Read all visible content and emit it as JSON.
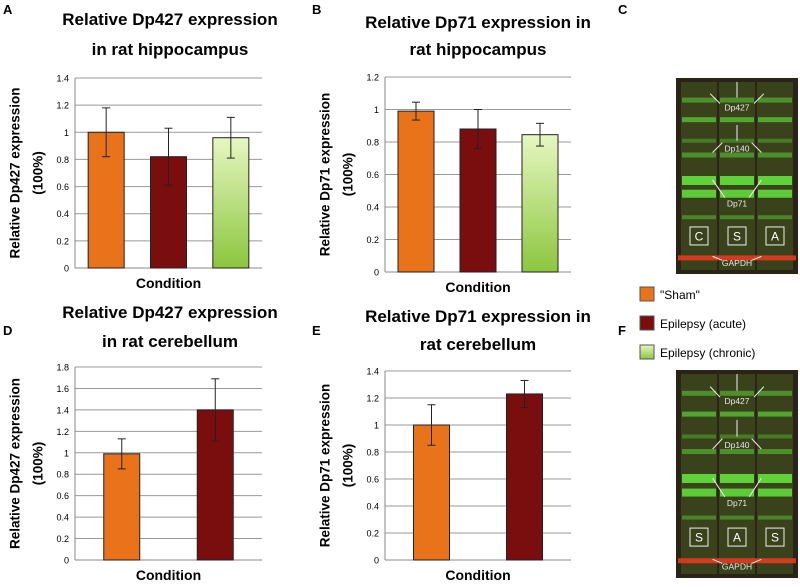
{
  "colors": {
    "sham": "#e8731a",
    "acute": "#7a0d0d",
    "chronic_light": "#e6f7c0",
    "chronic_dark": "#8cc63f",
    "grid": "#999999",
    "blot_bg": "#2a2318",
    "blot_band": "#5fd23a",
    "blot_red": "#e63a1e"
  },
  "legend": {
    "sham": "\"Sham\"",
    "acute": "Epilepsy (acute)",
    "chronic": "Epilepsy (chronic)"
  },
  "blots": [
    {
      "panel": "C",
      "labels": [
        "Dp427",
        "Dp140",
        "Dp71",
        "GAPDH"
      ],
      "lanes": [
        "C",
        "S",
        "A"
      ]
    },
    {
      "panel": "F",
      "labels": [
        "Dp427",
        "Dp140",
        "Dp71",
        "GAPDH"
      ],
      "lanes": [
        "S",
        "A",
        "S"
      ]
    }
  ],
  "chart_data": [
    {
      "panel": "A",
      "type": "bar",
      "title": [
        "Relative Dp427 expression",
        "in rat hippocampus"
      ],
      "xlabel": "Condition",
      "ylabel": [
        "Relative Dp427 expression",
        "(100%)"
      ],
      "ylim": [
        0,
        1.4
      ],
      "ticks": [
        "0",
        "0.2",
        "0.4",
        "0.6",
        "0.8",
        "1",
        "1.2",
        "1.4"
      ],
      "categories": [
        "Sham",
        "Epilepsy (acute)",
        "Epilepsy (chronic)"
      ],
      "values": [
        1.0,
        0.82,
        0.96
      ],
      "errors": [
        0.18,
        0.21,
        0.15
      ]
    },
    {
      "panel": "B",
      "type": "bar",
      "title": [
        "Relative Dp71 expression in",
        "rat hippocampus"
      ],
      "xlabel": "Condition",
      "ylabel": [
        "Relative Dp71 expression",
        "(100%)"
      ],
      "ylim": [
        0,
        1.2
      ],
      "ticks": [
        "0",
        "0.2",
        "0.4",
        "0.6",
        "0.8",
        "1",
        "1.2"
      ],
      "categories": [
        "Sham",
        "Epilepsy (acute)",
        "Epilepsy (chronic)"
      ],
      "values": [
        0.99,
        0.88,
        0.845
      ],
      "errors": [
        0.055,
        0.12,
        0.07
      ]
    },
    {
      "panel": "D",
      "type": "bar",
      "title": [
        "Relative Dp427 expression",
        "in rat cerebellum"
      ],
      "xlabel": "Condition",
      "ylabel": [
        "Relative Dp427 expression",
        "(100%)"
      ],
      "ylim": [
        0,
        1.8
      ],
      "ticks": [
        "0",
        "0.2",
        "0.4",
        "0.6",
        "0.8",
        "1",
        "1.2",
        "1.4",
        "1.6",
        "1.8"
      ],
      "categories": [
        "Sham",
        "Epilepsy (acute)"
      ],
      "values": [
        0.99,
        1.4
      ],
      "errors": [
        0.14,
        0.29
      ]
    },
    {
      "panel": "E",
      "type": "bar",
      "title": [
        "Relative Dp71 expression in",
        "rat cerebellum"
      ],
      "xlabel": "Condition",
      "ylabel": [
        "Relative Dp71 expression",
        "(100%)"
      ],
      "ylim": [
        0,
        1.4
      ],
      "ticks": [
        "0",
        "0.2",
        "0.4",
        "0.6",
        "0.8",
        "1",
        "1.2",
        "1.4"
      ],
      "categories": [
        "Sham",
        "Epilepsy (acute)"
      ],
      "values": [
        1.0,
        1.23
      ],
      "errors": [
        0.15,
        0.1
      ]
    }
  ]
}
